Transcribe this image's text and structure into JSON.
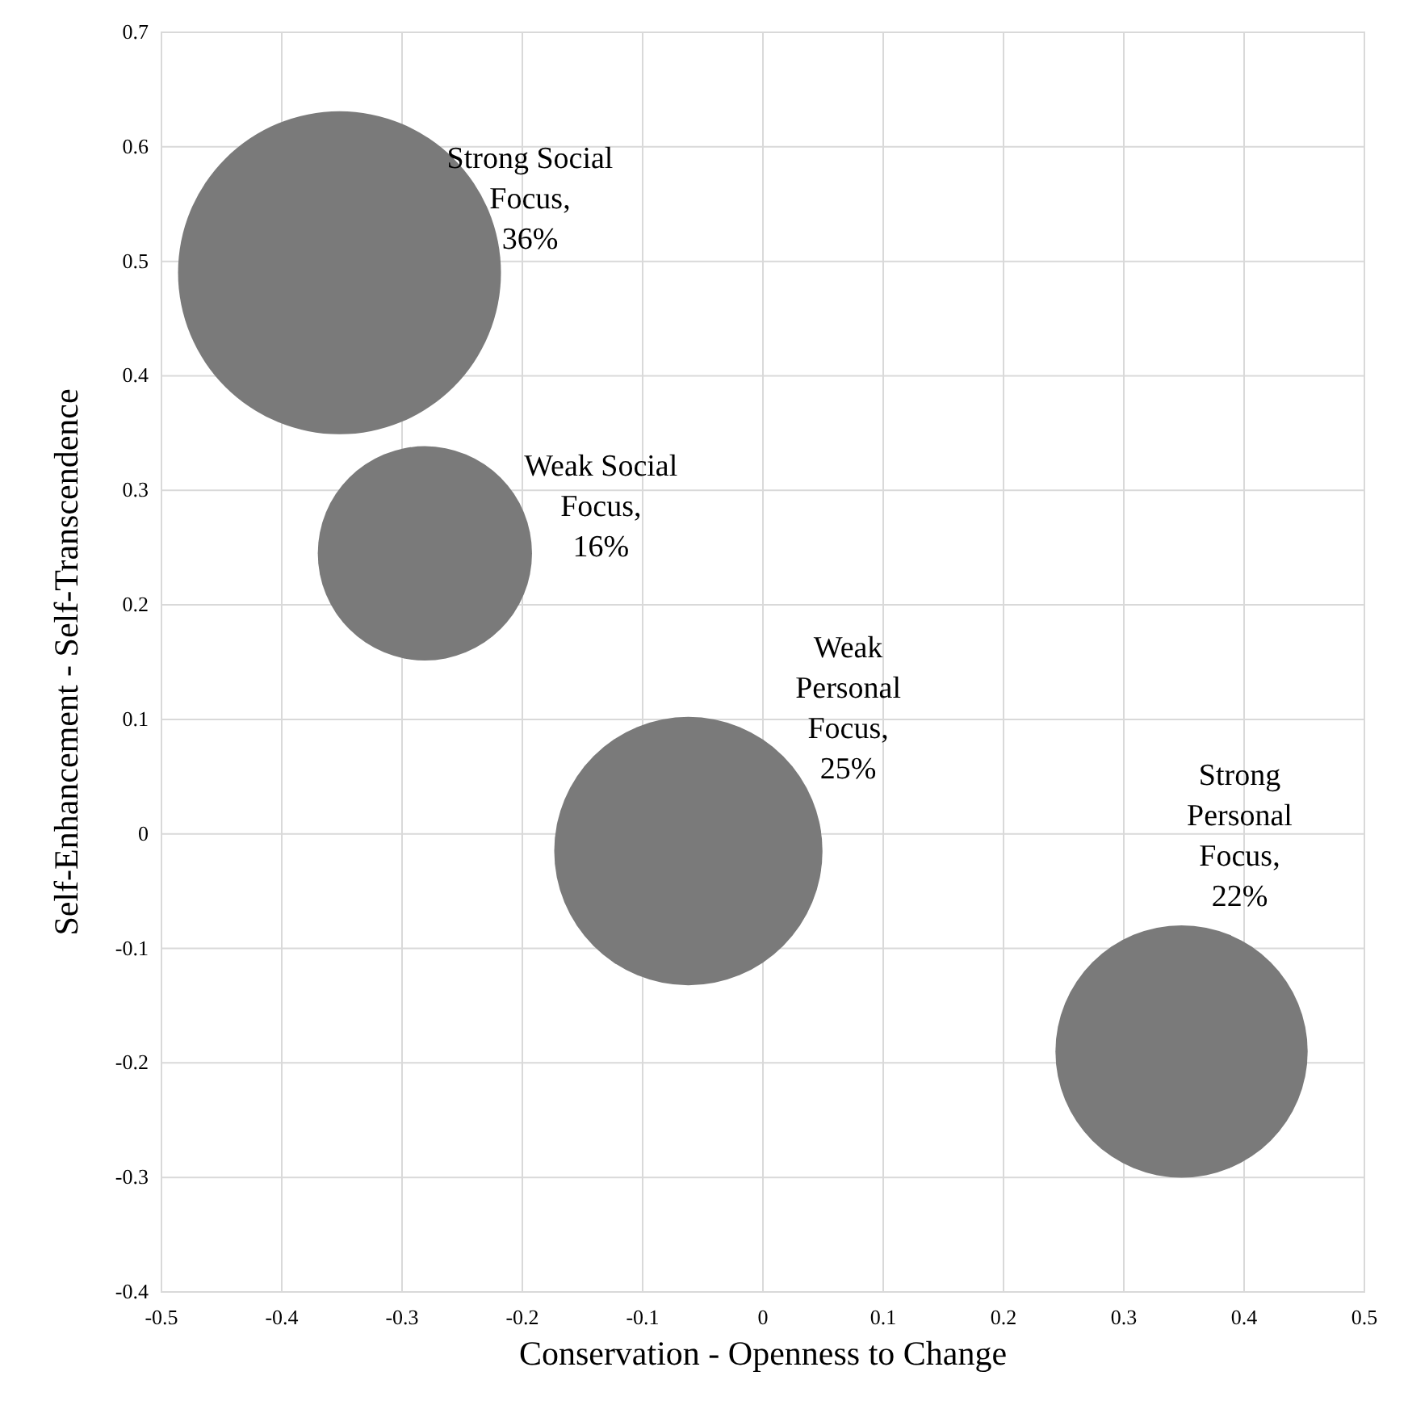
{
  "chart_data": {
    "type": "bubble",
    "xlabel": "Conservation - Openness to Change",
    "ylabel": "Self-Enhancement - Self-Transcendence",
    "x": [
      -0.352,
      -0.281,
      -0.062,
      0.348
    ],
    "values": [
      0.49,
      0.245,
      -0.015,
      -0.19
    ],
    "sizes": [
      1,
      0.44,
      0.69,
      0.61
    ],
    "color": "#7a7a7a",
    "xlim": [
      -0.5,
      0.5
    ],
    "xticks": [
      -0.5,
      -0.4,
      -0.3,
      -0.2,
      -0.1,
      0,
      0.1,
      0.2,
      0.3,
      0.4,
      0.5
    ],
    "ylim": [
      -0.4,
      0.7
    ],
    "yticks": [
      -0.4,
      -0.3,
      -0.2,
      -0.1,
      0,
      0.1,
      0.2,
      0.3,
      0.4,
      0.5,
      0.6,
      0.7
    ],
    "grid": true,
    "annotations": [
      "Strong Social\nFocus,\n36%",
      "Weak Social\nFocus,\n16%",
      "Weak\nPersonal\nFocus,\n25%",
      "Strong\nPersonal\nFocus,\n22%"
    ]
  }
}
